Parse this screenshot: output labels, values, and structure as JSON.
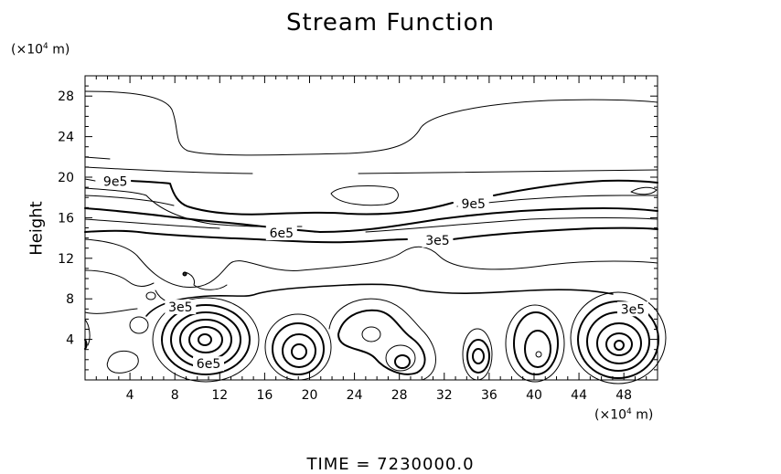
{
  "chart_data": {
    "type": "contour",
    "title": "Stream Function",
    "ylabel": "Height",
    "y_unit": {
      "prefix": "(×10",
      "exp": "4",
      "suffix": " m)"
    },
    "x_unit": {
      "prefix": "(×10",
      "exp": "4",
      "suffix": " m)"
    },
    "xlim": [
      0,
      51
    ],
    "ylim": [
      0,
      30
    ],
    "x_ticks": [
      "4",
      "8",
      "12",
      "16",
      "20",
      "24",
      "28",
      "32",
      "36",
      "40",
      "44",
      "48"
    ],
    "y_ticks": [
      "4",
      "8",
      "12",
      "16",
      "20",
      "24",
      "28"
    ],
    "contour_labels": [
      {
        "text": "9e5",
        "x": 2.7,
        "y": 19.6
      },
      {
        "text": "9e5",
        "x": 34.6,
        "y": 17.4
      },
      {
        "text": "6e5",
        "x": 17.5,
        "y": 14.5
      },
      {
        "text": "3e5",
        "x": 31.4,
        "y": 13.8
      },
      {
        "text": "3e5",
        "x": 8.5,
        "y": 7.2
      },
      {
        "text": "3e5",
        "x": 48.8,
        "y": 7.0
      },
      {
        "text": "6e5",
        "x": 11.0,
        "y": 1.6
      }
    ],
    "footer": "TIME  =  7230000.0"
  }
}
